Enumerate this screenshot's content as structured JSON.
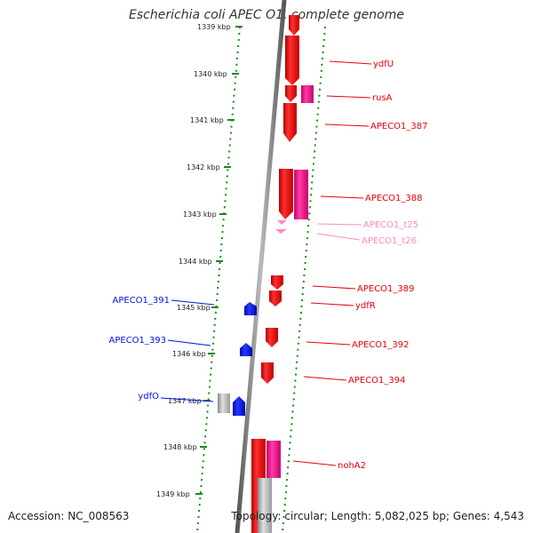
{
  "title": "Escherichia coli APEC O1, complete genome",
  "accession": "Accession: NC_008563",
  "summary": "Topology: circular; Length: 5,082,025 bp; Genes: 4,543",
  "colors": {
    "forward": "#e8000b",
    "forward_light": "#ff6a6a",
    "reverse": "#0010ee",
    "pink": "#ff1493",
    "rna": "#ff88c6",
    "gray": "#9a9a9a",
    "tick_green": "#1a8a1a",
    "backbone": "#808080"
  },
  "kbp_ticks": [
    "1339 kbp",
    "1340 kbp",
    "1341 kbp",
    "1342 kbp",
    "1343 kbp",
    "1344 kbp",
    "1345 kbp",
    "1346 kbp",
    "1347 kbp",
    "1348 kbp",
    "1349 kbp"
  ],
  "gene_labels": {
    "ydfU": "ydfU",
    "rusA": "rusA",
    "APECO1_387": "APECO1_387",
    "APECO1_388": "APECO1_388",
    "APECO1_t25": "APECO1_t25",
    "APECO1_t26": "APECO1_t26",
    "APECO1_389": "APECO1_389",
    "ydfR": "ydfR",
    "APECO1_392": "APECO1_392",
    "APECO1_394": "APECO1_394",
    "nohA2": "nohA2",
    "APECO1_391": "APECO1_391",
    "APECO1_393": "APECO1_393",
    "ydfO": "ydfO"
  }
}
